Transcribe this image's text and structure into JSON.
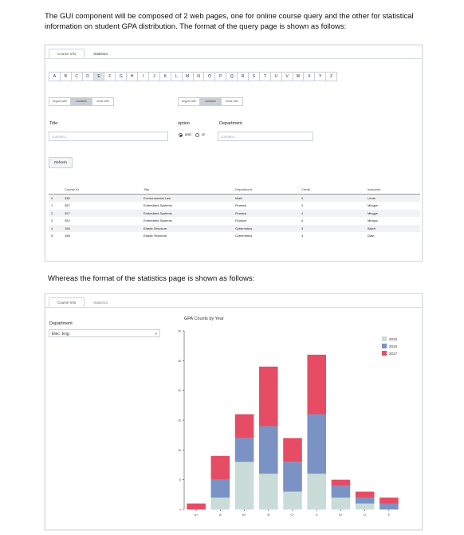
{
  "intro": "The GUI component will be composed of 2 web pages, one for online course query and the other for statistical information on student GPA distribution.  The format of the query page is shown as follows:",
  "mid": "Whereas the format of the statistics page is shown as follows:",
  "query": {
    "tabs": [
      "Course Info",
      "Statistics"
    ],
    "letters": [
      "A",
      "B",
      "C",
      "D",
      "E",
      "F",
      "G",
      "H",
      "I",
      "J",
      "K",
      "L",
      "M",
      "N",
      "O",
      "P",
      "Q",
      "R",
      "S",
      "T",
      "U",
      "V",
      "W",
      "X",
      "Y",
      "Z"
    ],
    "selected_letter": "E",
    "title_modes": [
      "begins with",
      "contains",
      "ends with"
    ],
    "dept_modes": [
      "begins with",
      "contains",
      "ends with"
    ],
    "title_label": "Title:",
    "title_placeholder": "contains...",
    "option_label": "option",
    "and_label": "and",
    "or_label": "or",
    "dept_label": "Department",
    "dept_placeholder": "contains...",
    "refresh": "Refresh",
    "columns": [
      "Course ID",
      "Title",
      "Department",
      "Credit",
      "Instructor"
    ],
    "rows": [
      {
        "idx": "0",
        "id": "345",
        "title": "Environmental Law",
        "dept": "Math",
        "credit": "4",
        "instructor": "Lente"
      },
      {
        "idx": "1",
        "id": "357",
        "title": "Embedded Systems",
        "dept": "Finance",
        "credit": "4",
        "instructor": "Mingye"
      },
      {
        "idx": "2",
        "id": "357",
        "title": "Embedded Systems",
        "dept": "Finance",
        "credit": "4",
        "instructor": "Mingye"
      },
      {
        "idx": "3",
        "id": "352",
        "title": "Embedded Systems",
        "dept": "Finance",
        "credit": "4",
        "instructor": "Mingoz"
      },
      {
        "idx": "4",
        "id": "158",
        "title": "Elastic Structure",
        "dept": "Cybernetics",
        "credit": "3",
        "instructor": "Balch"
      },
      {
        "idx": "5",
        "id": "158",
        "title": "Elastic Structure",
        "dept": "Cybernetics",
        "credit": "3",
        "instructor": "Dale"
      }
    ]
  },
  "stats": {
    "tabs": [
      "Course Info",
      "Statistics"
    ],
    "dept_label": "Department",
    "dept_value": "Elec. Eng.",
    "caret": "v"
  },
  "chart_data": {
    "type": "bar",
    "stacked": true,
    "title": "GPA Counts by Year",
    "categories": [
      "A+",
      "A",
      "B+",
      "B",
      "C+",
      "C",
      "D+",
      "D",
      "F"
    ],
    "series": [
      {
        "name": "2015",
        "color": "#c9dcd7",
        "values": [
          0,
          2,
          8,
          6,
          3,
          6,
          2,
          1,
          0
        ]
      },
      {
        "name": "2016",
        "color": "#7b92c4",
        "values": [
          0,
          3,
          4,
          8,
          5,
          10,
          2,
          1,
          1
        ]
      },
      {
        "name": "2017",
        "color": "#e64d64",
        "values": [
          1,
          4,
          4,
          10,
          4,
          10,
          1,
          1,
          1
        ]
      }
    ],
    "yticks": [
      "0",
      "5",
      "10",
      "15",
      "20",
      "25",
      "30"
    ],
    "ylim": [
      0,
      30
    ],
    "legend": "top-right"
  }
}
